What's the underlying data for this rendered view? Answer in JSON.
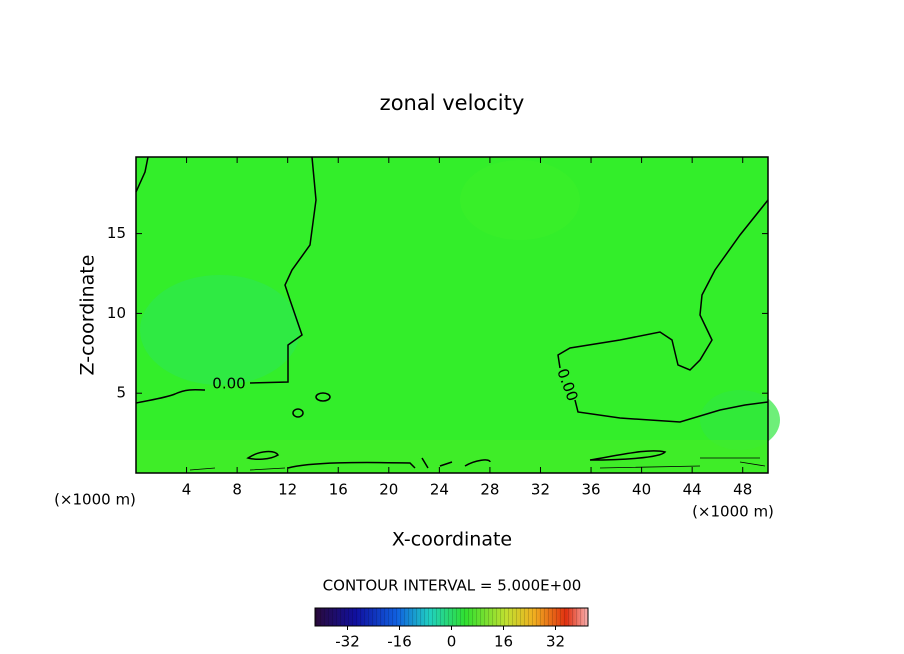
{
  "chart_data": {
    "type": "contour",
    "title": "zonal velocity",
    "x_label": "X-coordinate",
    "y_label": "Z-coordinate",
    "x_unit": "(×1000 m)",
    "y_unit": "(×1000 m)",
    "xlim": [
      0,
      50
    ],
    "ylim": [
      0,
      19.8
    ],
    "xticks": [
      4,
      8,
      12,
      16,
      20,
      24,
      28,
      32,
      36,
      40,
      44,
      48
    ],
    "yticks": [
      5,
      10,
      15
    ],
    "contours": {
      "levels": [
        0
      ],
      "value_labels": [
        "0.00"
      ]
    },
    "contour_interval_label": "CONTOUR INTERVAL = 5.000E+00",
    "colorbar": {
      "lim": [
        -42,
        42
      ],
      "ticks": [
        -32,
        -16,
        0,
        16,
        32
      ]
    }
  }
}
